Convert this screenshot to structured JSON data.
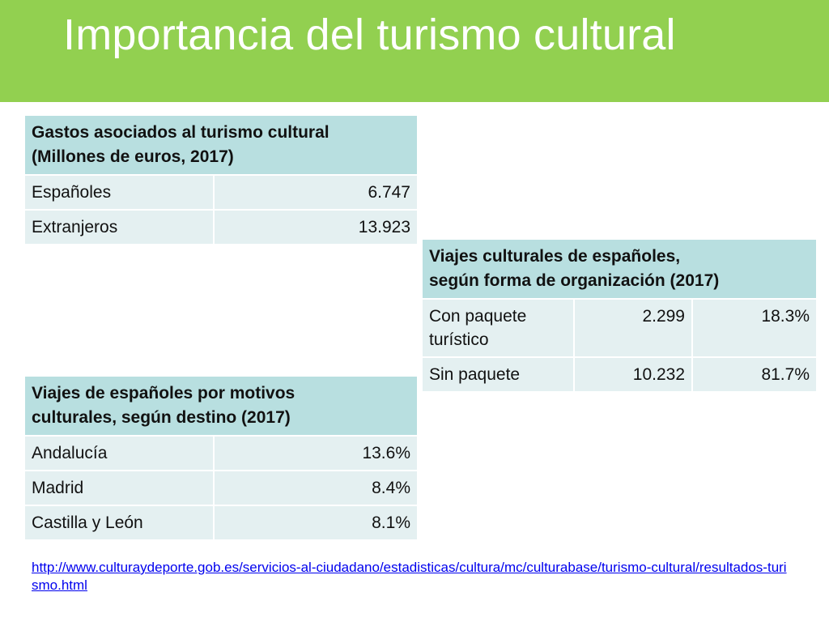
{
  "title": "Importancia del turismo cultural",
  "gastos": {
    "header_line1": "Gastos asociados al turismo cultural",
    "header_line2": "(Millones de euros, 2017)",
    "rows": [
      {
        "label": "Españoles",
        "value": "6.747"
      },
      {
        "label": "Extranjeros",
        "value": "13.923"
      }
    ]
  },
  "organizacion": {
    "header_line1": "Viajes culturales de españoles,",
    "header_line2": "según forma de organización (2017)",
    "rows": [
      {
        "label": "Con paquete turístico",
        "value": "2.299",
        "pct": "18.3%"
      },
      {
        "label": "Sin paquete",
        "value": "10.232",
        "pct": "81.7%"
      }
    ]
  },
  "destino": {
    "header_line1": "Viajes de españoles por motivos",
    "header_line2": "culturales, según destino (2017)",
    "rows": [
      {
        "label": "Andalucía",
        "value": "13.6%"
      },
      {
        "label": "Madrid",
        "value": "8.4%"
      },
      {
        "label": "Castilla y León",
        "value": "8.1%"
      }
    ]
  },
  "source_link": "http://www.culturaydeporte.gob.es/servicios-al-ciudadano/estadisticas/cultura/mc/culturabase/turismo-cultural/resultados-turismo.html",
  "colors": {
    "title_bar": "#92d050",
    "table_header": "#b8dfe0",
    "table_cell": "#e4f0f1",
    "link": "#0000ee"
  }
}
